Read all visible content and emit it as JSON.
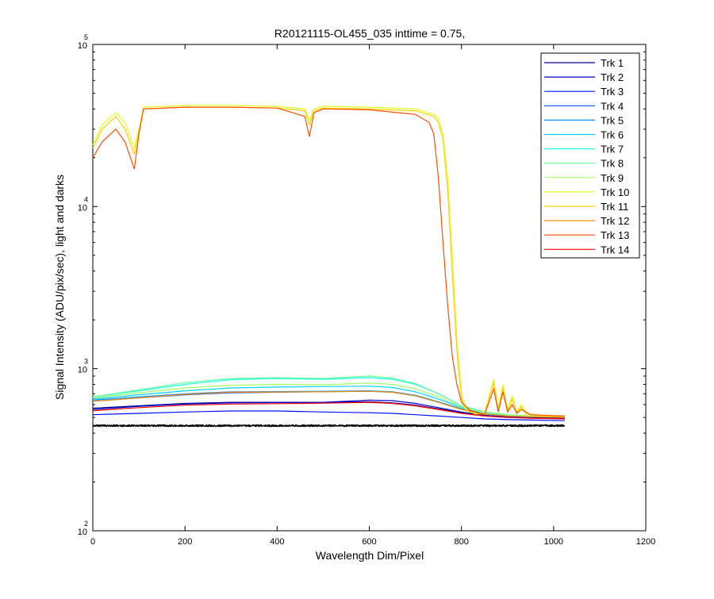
{
  "chart_data": {
    "type": "line",
    "title": "R20121115-OL455_035 inttime = 0.75,",
    "xlabel": "Wavelength Dim/Pixel",
    "ylabel": "Signal Intensity (ADU/pix/sec), light and darks",
    "xlim": [
      0,
      1200
    ],
    "ylim": [
      100,
      100000
    ],
    "yscale": "log",
    "grid": false,
    "legend_position": "top-right",
    "x_ticks": [
      "0",
      "200",
      "400",
      "600",
      "800",
      "1000",
      "1200"
    ],
    "y_ticks": [
      {
        "value": 100,
        "base": "10",
        "exp": "2"
      },
      {
        "value": 1000,
        "base": "10",
        "exp": "3"
      },
      {
        "value": 10000,
        "base": "10",
        "exp": "4"
      },
      {
        "value": 100000,
        "base": "10",
        "exp": "5"
      }
    ],
    "series": [
      {
        "name": "Trk 1",
        "color": "#00008F",
        "points": [
          [
            0,
            570
          ],
          [
            100,
            590
          ],
          [
            200,
            610
          ],
          [
            300,
            620
          ],
          [
            400,
            620
          ],
          [
            500,
            620
          ],
          [
            600,
            625
          ],
          [
            650,
            615
          ],
          [
            700,
            595
          ],
          [
            750,
            565
          ],
          [
            800,
            535
          ],
          [
            850,
            515
          ],
          [
            900,
            505
          ],
          [
            950,
            500
          ],
          [
            1024,
            495
          ]
        ]
      },
      {
        "name": "Trk 2",
        "color": "#0000CF",
        "points": [
          [
            0,
            560
          ],
          [
            100,
            585
          ],
          [
            200,
            605
          ],
          [
            300,
            615
          ],
          [
            400,
            618
          ],
          [
            500,
            620
          ],
          [
            600,
            640
          ],
          [
            650,
            635
          ],
          [
            700,
            610
          ],
          [
            750,
            575
          ],
          [
            800,
            540
          ],
          [
            850,
            515
          ],
          [
            900,
            505
          ],
          [
            950,
            500
          ],
          [
            1024,
            490
          ]
        ]
      },
      {
        "name": "Trk 3",
        "color": "#0010FF",
        "points": [
          [
            0,
            520
          ],
          [
            100,
            530
          ],
          [
            200,
            540
          ],
          [
            300,
            548
          ],
          [
            400,
            548
          ],
          [
            500,
            540
          ],
          [
            600,
            535
          ],
          [
            650,
            530
          ],
          [
            700,
            520
          ],
          [
            750,
            510
          ],
          [
            800,
            500
          ],
          [
            850,
            490
          ],
          [
            900,
            485
          ],
          [
            950,
            482
          ],
          [
            1024,
            478
          ]
        ]
      },
      {
        "name": "Trk 4",
        "color": "#0050FF",
        "points": [
          [
            0,
            630
          ],
          [
            100,
            660
          ],
          [
            200,
            690
          ],
          [
            300,
            710
          ],
          [
            400,
            715
          ],
          [
            500,
            720
          ],
          [
            600,
            725
          ],
          [
            650,
            715
          ],
          [
            700,
            680
          ],
          [
            750,
            620
          ],
          [
            800,
            560
          ],
          [
            850,
            525
          ],
          [
            900,
            510
          ],
          [
            950,
            505
          ],
          [
            1024,
            500
          ]
        ]
      },
      {
        "name": "Trk 5",
        "color": "#0090FF",
        "points": [
          [
            0,
            640
          ],
          [
            100,
            670
          ],
          [
            200,
            700
          ],
          [
            300,
            720
          ],
          [
            400,
            722
          ],
          [
            500,
            725
          ],
          [
            600,
            730
          ],
          [
            650,
            720
          ],
          [
            700,
            685
          ],
          [
            750,
            625
          ],
          [
            800,
            565
          ],
          [
            850,
            528
          ],
          [
            900,
            512
          ],
          [
            950,
            506
          ],
          [
            1024,
            502
          ]
        ]
      },
      {
        "name": "Trk 6",
        "color": "#00D0FF",
        "points": [
          [
            0,
            650
          ],
          [
            100,
            690
          ],
          [
            200,
            730
          ],
          [
            300,
            760
          ],
          [
            400,
            770
          ],
          [
            500,
            775
          ],
          [
            600,
            780
          ],
          [
            650,
            765
          ],
          [
            700,
            720
          ],
          [
            750,
            650
          ],
          [
            800,
            575
          ],
          [
            850,
            532
          ],
          [
            900,
            515
          ],
          [
            950,
            508
          ],
          [
            1024,
            504
          ]
        ]
      },
      {
        "name": "Trk 7",
        "color": "#20FFDF",
        "points": [
          [
            0,
            670
          ],
          [
            100,
            730
          ],
          [
            200,
            800
          ],
          [
            300,
            855
          ],
          [
            400,
            870
          ],
          [
            500,
            860
          ],
          [
            600,
            880
          ],
          [
            650,
            860
          ],
          [
            700,
            800
          ],
          [
            750,
            700
          ],
          [
            800,
            590
          ],
          [
            850,
            540
          ],
          [
            900,
            520
          ],
          [
            950,
            510
          ],
          [
            1024,
            506
          ]
        ]
      },
      {
        "name": "Trk 8",
        "color": "#60FF9F",
        "points": [
          [
            0,
            670
          ],
          [
            100,
            740
          ],
          [
            200,
            820
          ],
          [
            300,
            870
          ],
          [
            400,
            880
          ],
          [
            500,
            870
          ],
          [
            600,
            900
          ],
          [
            650,
            875
          ],
          [
            700,
            810
          ],
          [
            750,
            700
          ],
          [
            800,
            590
          ],
          [
            850,
            540
          ],
          [
            900,
            520
          ],
          [
            950,
            510
          ],
          [
            1024,
            508
          ]
        ]
      },
      {
        "name": "Trk 9",
        "color": "#9FFF60",
        "points": [
          [
            0,
            660
          ],
          [
            100,
            710
          ],
          [
            200,
            760
          ],
          [
            300,
            790
          ],
          [
            400,
            800
          ],
          [
            500,
            795
          ],
          [
            600,
            815
          ],
          [
            650,
            800
          ],
          [
            700,
            750
          ],
          [
            750,
            670
          ],
          [
            800,
            580
          ],
          [
            850,
            535
          ],
          [
            900,
            518
          ],
          [
            950,
            510
          ],
          [
            1024,
            506
          ]
        ]
      },
      {
        "name": "Trk 10",
        "color": "#DFFF20",
        "points": [
          [
            0,
            24000
          ],
          [
            20,
            32000
          ],
          [
            50,
            38000
          ],
          [
            70,
            33000
          ],
          [
            90,
            23000
          ],
          [
            100,
            30000
          ],
          [
            110,
            41000
          ],
          [
            200,
            42000
          ],
          [
            300,
            42000
          ],
          [
            400,
            41500
          ],
          [
            460,
            40000
          ],
          [
            470,
            34000
          ],
          [
            480,
            40000
          ],
          [
            500,
            41500
          ],
          [
            600,
            41000
          ],
          [
            700,
            40000
          ],
          [
            740,
            37000
          ],
          [
            750,
            35000
          ],
          [
            760,
            28000
          ],
          [
            770,
            15000
          ],
          [
            780,
            5000
          ],
          [
            790,
            1500
          ],
          [
            800,
            700
          ],
          [
            810,
            560
          ],
          [
            830,
            530
          ],
          [
            850,
            530
          ],
          [
            870,
            860
          ],
          [
            880,
            560
          ],
          [
            890,
            800
          ],
          [
            900,
            560
          ],
          [
            910,
            680
          ],
          [
            920,
            540
          ],
          [
            930,
            600
          ],
          [
            940,
            530
          ],
          [
            960,
            520
          ],
          [
            1000,
            512
          ],
          [
            1024,
            510
          ]
        ]
      },
      {
        "name": "Trk 11",
        "color": "#FFD000",
        "points": [
          [
            0,
            23000
          ],
          [
            20,
            30000
          ],
          [
            50,
            36000
          ],
          [
            70,
            30000
          ],
          [
            90,
            21000
          ],
          [
            100,
            29000
          ],
          [
            110,
            40000
          ],
          [
            200,
            41000
          ],
          [
            300,
            41000
          ],
          [
            400,
            40500
          ],
          [
            460,
            39000
          ],
          [
            470,
            32000
          ],
          [
            480,
            39000
          ],
          [
            500,
            40500
          ],
          [
            600,
            40000
          ],
          [
            700,
            39000
          ],
          [
            740,
            36000
          ],
          [
            750,
            33000
          ],
          [
            760,
            26000
          ],
          [
            770,
            13000
          ],
          [
            780,
            4000
          ],
          [
            790,
            1300
          ],
          [
            800,
            650
          ],
          [
            810,
            550
          ],
          [
            830,
            525
          ],
          [
            850,
            525
          ],
          [
            870,
            820
          ],
          [
            880,
            550
          ],
          [
            890,
            760
          ],
          [
            900,
            550
          ],
          [
            910,
            650
          ],
          [
            920,
            535
          ],
          [
            930,
            580
          ],
          [
            940,
            525
          ],
          [
            960,
            515
          ],
          [
            1024,
            505
          ]
        ]
      },
      {
        "name": "Trk 12",
        "color": "#FF8F00",
        "points": [
          [
            0,
            630
          ],
          [
            100,
            660
          ],
          [
            200,
            695
          ],
          [
            300,
            715
          ],
          [
            400,
            718
          ],
          [
            500,
            720
          ],
          [
            600,
            725
          ],
          [
            650,
            715
          ],
          [
            700,
            680
          ],
          [
            750,
            620
          ],
          [
            800,
            560
          ],
          [
            850,
            525
          ],
          [
            900,
            510
          ],
          [
            950,
            505
          ],
          [
            1024,
            500
          ]
        ]
      },
      {
        "name": "Trk 13",
        "color": "#FF4F00",
        "points": [
          [
            0,
            20000
          ],
          [
            20,
            25000
          ],
          [
            50,
            30000
          ],
          [
            70,
            25000
          ],
          [
            90,
            17000
          ],
          [
            100,
            28000
          ],
          [
            110,
            40000
          ],
          [
            200,
            41000
          ],
          [
            300,
            41000
          ],
          [
            400,
            40500
          ],
          [
            460,
            36000
          ],
          [
            470,
            27000
          ],
          [
            480,
            38000
          ],
          [
            500,
            40000
          ],
          [
            600,
            39500
          ],
          [
            700,
            37000
          ],
          [
            730,
            33000
          ],
          [
            740,
            28000
          ],
          [
            750,
            15000
          ],
          [
            760,
            6000
          ],
          [
            770,
            2500
          ],
          [
            780,
            1200
          ],
          [
            790,
            800
          ],
          [
            800,
            620
          ],
          [
            820,
            550
          ],
          [
            850,
            520
          ],
          [
            870,
            750
          ],
          [
            880,
            540
          ],
          [
            890,
            720
          ],
          [
            900,
            540
          ],
          [
            910,
            600
          ],
          [
            920,
            530
          ],
          [
            930,
            560
          ],
          [
            950,
            520
          ],
          [
            1024,
            510
          ]
        ]
      },
      {
        "name": "Trk 14",
        "color": "#FF0000",
        "points": [
          [
            0,
            550
          ],
          [
            100,
            575
          ],
          [
            200,
            595
          ],
          [
            300,
            605
          ],
          [
            400,
            608
          ],
          [
            500,
            612
          ],
          [
            600,
            620
          ],
          [
            650,
            610
          ],
          [
            700,
            590
          ],
          [
            750,
            560
          ],
          [
            800,
            530
          ],
          [
            850,
            510
          ],
          [
            900,
            500
          ],
          [
            950,
            495
          ],
          [
            1024,
            490
          ]
        ]
      }
    ],
    "dark_series": {
      "color": "#000000",
      "x_range": [
        0,
        1024
      ],
      "level": 445,
      "noise": 6
    }
  }
}
